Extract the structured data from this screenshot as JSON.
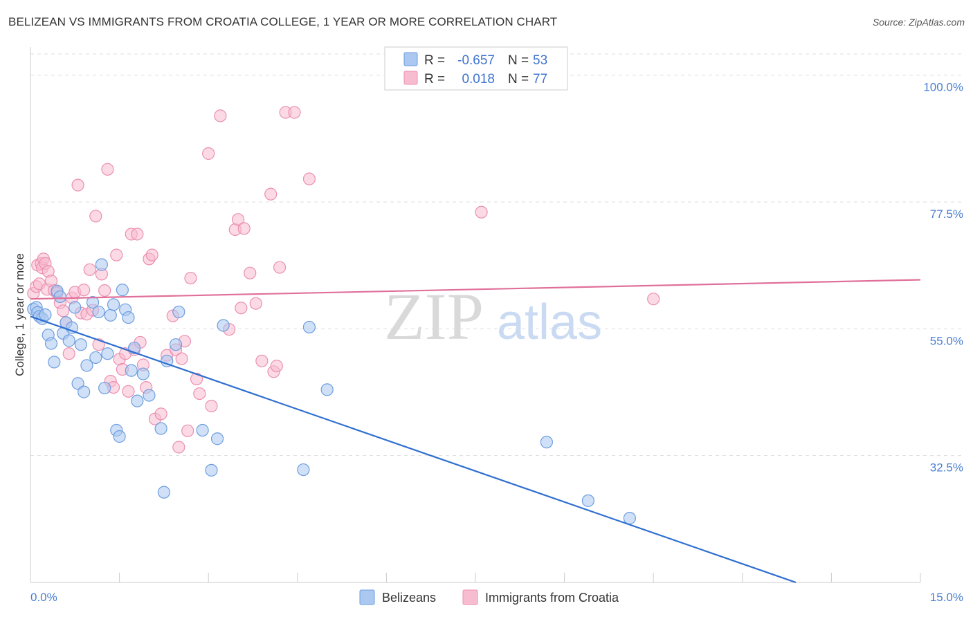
{
  "title": "BELIZEAN VS IMMIGRANTS FROM CROATIA COLLEGE, 1 YEAR OR MORE CORRELATION CHART",
  "source": "Source: ZipAtlas.com",
  "watermark": {
    "zip": "ZIP",
    "atlas": "atlas"
  },
  "legend_top": {
    "rows": [
      {
        "r_label": "R =",
        "r_value": "-0.657",
        "n_label": "N =",
        "n_value": "53"
      },
      {
        "r_label": "R =",
        "r_value": "0.018",
        "n_label": "N =",
        "n_value": "77"
      }
    ]
  },
  "colors": {
    "blue_fill": "#aac8f0",
    "blue_stroke": "#6d9de0",
    "blue_line": "#2f6fd0",
    "pink_fill": "#f7bcd0",
    "pink_stroke": "#eb8fb0",
    "pink_line": "#e0709a",
    "grid": "#dddddd",
    "tick_text": "#4a7fd0"
  },
  "chart_data": {
    "type": "scatter",
    "title": "BELIZEAN VS IMMIGRANTS FROM CROATIA COLLEGE, 1 YEAR OR MORE CORRELATION CHART",
    "xlabel": "",
    "ylabel": "College, 1 year or more",
    "xlim": [
      0,
      15
    ],
    "ylim": [
      10,
      105
    ],
    "x_tick_labels": [
      "0.0%",
      "15.0%"
    ],
    "y_ticks": [
      32.5,
      55.0,
      77.5,
      100.0
    ],
    "y_tick_labels": [
      "32.5%",
      "55.0%",
      "77.5%",
      "100.0%"
    ],
    "legend_position": "top-center",
    "series": [
      {
        "name": "Belizeans",
        "r": -0.657,
        "n": 53,
        "trend": {
          "x": [
            0.0,
            12.9
          ],
          "y": [
            57.2,
            10.0
          ]
        },
        "points": [
          [
            0.05,
            58.5
          ],
          [
            0.1,
            58.8
          ],
          [
            0.12,
            57.9
          ],
          [
            0.15,
            57.2
          ],
          [
            0.2,
            56.8
          ],
          [
            0.25,
            57.5
          ],
          [
            0.3,
            53.9
          ],
          [
            0.35,
            52.4
          ],
          [
            0.4,
            49.1
          ],
          [
            0.45,
            61.7
          ],
          [
            0.5,
            60.7
          ],
          [
            0.55,
            54.2
          ],
          [
            0.6,
            56.1
          ],
          [
            0.65,
            52.9
          ],
          [
            0.7,
            55.2
          ],
          [
            0.75,
            58.8
          ],
          [
            0.8,
            45.3
          ],
          [
            0.85,
            52.2
          ],
          [
            0.9,
            43.8
          ],
          [
            0.95,
            48.5
          ],
          [
            1.05,
            59.7
          ],
          [
            1.1,
            49.9
          ],
          [
            1.15,
            58.0
          ],
          [
            1.2,
            66.4
          ],
          [
            1.25,
            44.5
          ],
          [
            1.3,
            50.6
          ],
          [
            1.35,
            57.4
          ],
          [
            1.4,
            59.3
          ],
          [
            1.45,
            37.0
          ],
          [
            1.5,
            35.9
          ],
          [
            1.55,
            61.9
          ],
          [
            1.6,
            58.4
          ],
          [
            1.65,
            57.0
          ],
          [
            1.7,
            47.6
          ],
          [
            1.75,
            51.6
          ],
          [
            1.8,
            42.2
          ],
          [
            1.9,
            47.0
          ],
          [
            2.0,
            43.2
          ],
          [
            2.2,
            37.3
          ],
          [
            2.25,
            26.0
          ],
          [
            2.3,
            49.3
          ],
          [
            2.45,
            52.2
          ],
          [
            2.5,
            58.0
          ],
          [
            2.9,
            37.0
          ],
          [
            3.05,
            29.9
          ],
          [
            3.15,
            35.5
          ],
          [
            3.25,
            55.6
          ],
          [
            4.6,
            30.0
          ],
          [
            4.7,
            55.3
          ],
          [
            5.0,
            44.2
          ],
          [
            8.7,
            34.9
          ],
          [
            9.4,
            24.5
          ],
          [
            10.1,
            21.4
          ]
        ]
      },
      {
        "name": "Immigrants from Croatia",
        "r": 0.018,
        "n": 77,
        "trend": {
          "x": [
            0.0,
            15.0
          ],
          "y": [
            60.3,
            63.7
          ]
        },
        "points": [
          [
            0.05,
            61.3
          ],
          [
            0.1,
            62.5
          ],
          [
            0.12,
            66.3
          ],
          [
            0.15,
            63.0
          ],
          [
            0.18,
            66.6
          ],
          [
            0.2,
            65.8
          ],
          [
            0.22,
            67.4
          ],
          [
            0.25,
            66.6
          ],
          [
            0.28,
            62.0
          ],
          [
            0.3,
            65.2
          ],
          [
            0.35,
            63.5
          ],
          [
            0.4,
            61.8
          ],
          [
            0.45,
            61.4
          ],
          [
            0.5,
            59.6
          ],
          [
            0.55,
            58.2
          ],
          [
            0.6,
            56.1
          ],
          [
            0.65,
            50.6
          ],
          [
            0.7,
            60.5
          ],
          [
            0.75,
            61.5
          ],
          [
            0.8,
            80.5
          ],
          [
            0.85,
            57.8
          ],
          [
            0.9,
            61.9
          ],
          [
            0.95,
            57.6
          ],
          [
            1.0,
            65.5
          ],
          [
            1.05,
            58.3
          ],
          [
            1.1,
            75.0
          ],
          [
            1.15,
            52.2
          ],
          [
            1.2,
            64.7
          ],
          [
            1.25,
            61.8
          ],
          [
            1.3,
            83.3
          ],
          [
            1.35,
            45.7
          ],
          [
            1.4,
            44.6
          ],
          [
            1.45,
            68.1
          ],
          [
            1.5,
            49.6
          ],
          [
            1.55,
            47.8
          ],
          [
            1.6,
            50.6
          ],
          [
            1.65,
            43.9
          ],
          [
            1.7,
            71.8
          ],
          [
            1.75,
            51.3
          ],
          [
            1.8,
            71.8
          ],
          [
            1.85,
            52.6
          ],
          [
            1.9,
            48.6
          ],
          [
            1.95,
            44.6
          ],
          [
            2.0,
            67.4
          ],
          [
            2.05,
            68.1
          ],
          [
            2.1,
            39.0
          ],
          [
            2.2,
            39.9
          ],
          [
            2.3,
            50.3
          ],
          [
            2.4,
            57.3
          ],
          [
            2.45,
            51.3
          ],
          [
            2.5,
            34.0
          ],
          [
            2.55,
            49.7
          ],
          [
            2.6,
            52.8
          ],
          [
            2.65,
            36.9
          ],
          [
            2.7,
            64.0
          ],
          [
            2.8,
            46.1
          ],
          [
            2.85,
            43.5
          ],
          [
            3.0,
            86.1
          ],
          [
            3.05,
            41.3
          ],
          [
            3.2,
            92.8
          ],
          [
            3.35,
            54.9
          ],
          [
            3.45,
            72.6
          ],
          [
            3.5,
            74.4
          ],
          [
            3.55,
            58.7
          ],
          [
            3.6,
            72.8
          ],
          [
            3.7,
            64.9
          ],
          [
            3.8,
            59.5
          ],
          [
            3.9,
            49.3
          ],
          [
            4.05,
            78.9
          ],
          [
            4.1,
            47.4
          ],
          [
            4.15,
            48.4
          ],
          [
            4.2,
            65.9
          ],
          [
            4.3,
            93.4
          ],
          [
            4.45,
            93.4
          ],
          [
            4.7,
            81.6
          ],
          [
            7.6,
            75.7
          ],
          [
            10.5,
            60.3
          ]
        ]
      }
    ]
  },
  "bottom_legend": [
    {
      "label": "Belizeans"
    },
    {
      "label": "Immigrants from Croatia"
    }
  ]
}
